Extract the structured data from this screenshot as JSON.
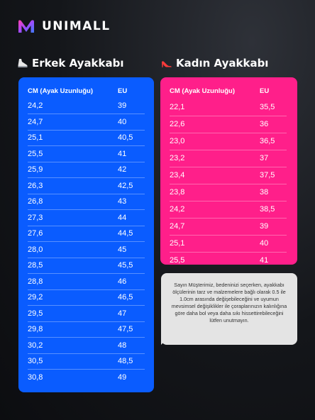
{
  "brand": {
    "name": "UNIMALL"
  },
  "men": {
    "title": "Erkek Ayakkabı",
    "icon": "sneaker-icon",
    "headers": [
      "CM (Ayak Uzunluğu)",
      "EU"
    ],
    "rows": [
      [
        "24,2",
        "39"
      ],
      [
        "24,7",
        "40"
      ],
      [
        "25,1",
        "40,5"
      ],
      [
        "25,5",
        "41"
      ],
      [
        "25,9",
        "42"
      ],
      [
        "26,3",
        "42,5"
      ],
      [
        "26,8",
        "43"
      ],
      [
        "27,3",
        "44"
      ],
      [
        "27,6",
        "44,5"
      ],
      [
        "28,0",
        "45"
      ],
      [
        "28,5",
        "45,5"
      ],
      [
        "28,8",
        "46"
      ],
      [
        "29,2",
        "46,5"
      ],
      [
        "29,5",
        "47"
      ],
      [
        "29,8",
        "47,5"
      ],
      [
        "30,2",
        "48"
      ],
      [
        "30,5",
        "48,5"
      ],
      [
        "30,8",
        "49"
      ]
    ],
    "color": "#0a5cff"
  },
  "women": {
    "title": "Kadın Ayakkabı",
    "icon": "high-heel-icon",
    "headers": [
      "CM (Ayak Uzunluğu)",
      "EU"
    ],
    "rows": [
      [
        "22,1",
        "35,5"
      ],
      [
        "22,6",
        "36"
      ],
      [
        "23,0",
        "36,5"
      ],
      [
        "23,2",
        "37"
      ],
      [
        "23,4",
        "37,5"
      ],
      [
        "23,8",
        "38"
      ],
      [
        "24,2",
        "38,5"
      ],
      [
        "24,7",
        "39"
      ],
      [
        "25,1",
        "40"
      ],
      [
        "25,5",
        "41"
      ]
    ],
    "color": "#ff1f8a"
  },
  "note": {
    "text": "Sayın Müşterimiz, bedeninizi seçerken, ayakkabı ölçülerinin tarz ve malzemelere bağlı olarak 0.5 ile 1.0cm arasında değişebileceğini ve uyumun mevsimsel değişiklikler ile çoraplarınızın kalınlığına göre daha bol veya daha sıkı hissettirebileceğini lütfen unutmayın."
  }
}
